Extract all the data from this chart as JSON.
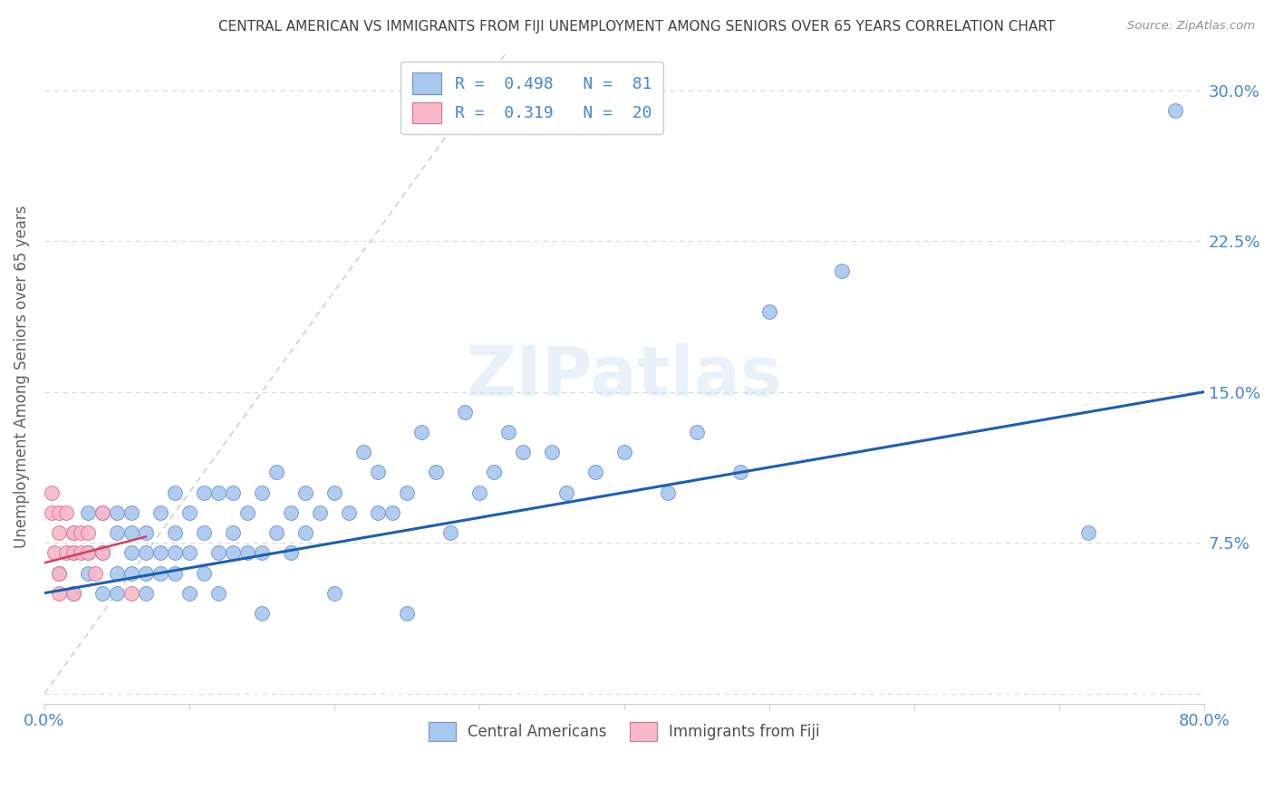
{
  "title": "CENTRAL AMERICAN VS IMMIGRANTS FROM FIJI UNEMPLOYMENT AMONG SENIORS OVER 65 YEARS CORRELATION CHART",
  "source": "Source: ZipAtlas.com",
  "ylabel": "Unemployment Among Seniors over 65 years",
  "xlim": [
    0.0,
    0.8
  ],
  "ylim": [
    -0.005,
    0.32
  ],
  "xticks": [
    0.0,
    0.1,
    0.2,
    0.3,
    0.4,
    0.5,
    0.6,
    0.7,
    0.8
  ],
  "ytick_positions": [
    0.0,
    0.075,
    0.15,
    0.225,
    0.3
  ],
  "ytick_labels": [
    "",
    "7.5%",
    "15.0%",
    "22.5%",
    "30.0%"
  ],
  "blue_line_color": "#1a5fb4",
  "pink_line_color": "#d04060",
  "blue_scatter_color": "#a8c8f0",
  "pink_scatter_color": "#f8b8c8",
  "blue_scatter_edge": "#7090c8",
  "pink_scatter_edge": "#d87090",
  "diag_line_color": "#c8c8c8",
  "background_color": "#ffffff",
  "grid_color": "#d8d8d8",
  "watermark": "ZIPatlas",
  "title_color": "#404040",
  "source_color": "#909090",
  "axis_label_color": "#606060",
  "tick_label_color": "#4488cc",
  "legend_label1": "R =  0.498   N =  81",
  "legend_label2": "R =  0.319   N =  20",
  "bottom_label1": "Central Americans",
  "bottom_label2": "Immigrants from Fiji",
  "blue_scatter_x": [
    0.01,
    0.02,
    0.02,
    0.02,
    0.03,
    0.03,
    0.03,
    0.04,
    0.04,
    0.04,
    0.05,
    0.05,
    0.05,
    0.05,
    0.06,
    0.06,
    0.06,
    0.06,
    0.07,
    0.07,
    0.07,
    0.07,
    0.08,
    0.08,
    0.08,
    0.09,
    0.09,
    0.09,
    0.09,
    0.1,
    0.1,
    0.1,
    0.11,
    0.11,
    0.11,
    0.12,
    0.12,
    0.12,
    0.13,
    0.13,
    0.13,
    0.14,
    0.14,
    0.15,
    0.15,
    0.15,
    0.16,
    0.16,
    0.17,
    0.17,
    0.18,
    0.18,
    0.19,
    0.2,
    0.2,
    0.21,
    0.22,
    0.23,
    0.23,
    0.24,
    0.25,
    0.25,
    0.26,
    0.27,
    0.28,
    0.29,
    0.3,
    0.31,
    0.32,
    0.33,
    0.35,
    0.36,
    0.38,
    0.4,
    0.43,
    0.45,
    0.48,
    0.5,
    0.55,
    0.72,
    0.78
  ],
  "blue_scatter_y": [
    0.06,
    0.05,
    0.07,
    0.08,
    0.06,
    0.07,
    0.09,
    0.05,
    0.07,
    0.09,
    0.05,
    0.06,
    0.08,
    0.09,
    0.06,
    0.07,
    0.08,
    0.09,
    0.05,
    0.06,
    0.07,
    0.08,
    0.06,
    0.07,
    0.09,
    0.06,
    0.07,
    0.08,
    0.1,
    0.05,
    0.07,
    0.09,
    0.06,
    0.08,
    0.1,
    0.05,
    0.07,
    0.1,
    0.07,
    0.08,
    0.1,
    0.07,
    0.09,
    0.04,
    0.07,
    0.1,
    0.08,
    0.11,
    0.07,
    0.09,
    0.08,
    0.1,
    0.09,
    0.05,
    0.1,
    0.09,
    0.12,
    0.09,
    0.11,
    0.09,
    0.04,
    0.1,
    0.13,
    0.11,
    0.08,
    0.14,
    0.1,
    0.11,
    0.13,
    0.12,
    0.12,
    0.1,
    0.11,
    0.12,
    0.1,
    0.13,
    0.11,
    0.19,
    0.21,
    0.08,
    0.29
  ],
  "pink_scatter_x": [
    0.005,
    0.005,
    0.007,
    0.01,
    0.01,
    0.01,
    0.01,
    0.015,
    0.015,
    0.02,
    0.02,
    0.02,
    0.025,
    0.025,
    0.03,
    0.03,
    0.035,
    0.04,
    0.04,
    0.06
  ],
  "pink_scatter_y": [
    0.09,
    0.1,
    0.07,
    0.08,
    0.06,
    0.05,
    0.09,
    0.07,
    0.09,
    0.07,
    0.08,
    0.05,
    0.07,
    0.08,
    0.07,
    0.08,
    0.06,
    0.07,
    0.09,
    0.05
  ],
  "blue_line_x0": 0.0,
  "blue_line_y0": 0.05,
  "blue_line_x1": 0.8,
  "blue_line_y1": 0.15,
  "pink_line_x0": 0.0,
  "pink_line_y0": 0.065,
  "pink_line_x1": 0.07,
  "pink_line_y1": 0.078
}
